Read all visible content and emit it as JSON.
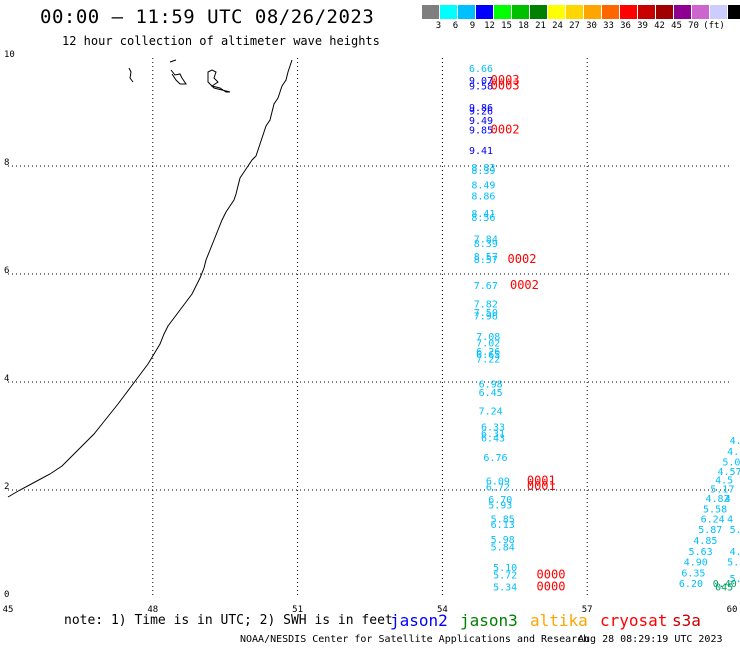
{
  "title": "00:00 — 11:59 UTC 08/26/2023",
  "subtitle": "12 hour collection of altimeter wave heights",
  "legend": {
    "colors": [
      "#7f7f7f",
      "#00ffff",
      "#00bfff",
      "#0000ff",
      "#00ff00",
      "#00c000",
      "#008000",
      "#ffff00",
      "#ffd700",
      "#ffa500",
      "#ff6600",
      "#ff0000",
      "#c80000",
      "#a00000",
      "#900090",
      "#cc66cc",
      "#ccccff",
      "#000000"
    ],
    "labels": [
      "3",
      "6",
      "9",
      "12",
      "15",
      "18",
      "21",
      "24",
      "27",
      "30",
      "33",
      "36",
      "39",
      "42",
      "45",
      "70",
      "(ft)"
    ]
  },
  "axes": {
    "x_ticks": [
      "45",
      "48",
      "51",
      "54",
      "57",
      "60"
    ],
    "y_ticks": [
      "0",
      "2",
      "4",
      "6",
      "8",
      "10"
    ]
  },
  "chart_data": {
    "type": "scatter",
    "x_range": [
      45,
      60
    ],
    "y_range": [
      0,
      10
    ],
    "points": [
      {
        "x": 54.55,
        "y": 9.74,
        "label": "6.66",
        "color": "#00bfff"
      },
      {
        "x": 54.55,
        "y": 9.52,
        "label": "9.07",
        "color": "#0000ff"
      },
      {
        "x": 54.55,
        "y": 9.42,
        "label": "9.58",
        "color": "#0000ff"
      },
      {
        "x": 54.55,
        "y": 9.02,
        "label": "9.86",
        "color": "#0000ff"
      },
      {
        "x": 54.55,
        "y": 8.95,
        "label": "9.26",
        "color": "#0000ff"
      },
      {
        "x": 54.55,
        "y": 8.78,
        "label": "9.49",
        "color": "#0000ff"
      },
      {
        "x": 54.55,
        "y": 8.6,
        "label": "9.85",
        "color": "#0000ff"
      },
      {
        "x": 54.55,
        "y": 8.22,
        "label": "9.41",
        "color": "#0000ff"
      },
      {
        "x": 54.6,
        "y": 7.91,
        "label": "8.83",
        "color": "#00bfff"
      },
      {
        "x": 54.6,
        "y": 7.85,
        "label": "8.39",
        "color": "#00bfff"
      },
      {
        "x": 54.6,
        "y": 7.58,
        "label": "8.49",
        "color": "#00bfff"
      },
      {
        "x": 54.6,
        "y": 7.38,
        "label": "8.86",
        "color": "#00bfff"
      },
      {
        "x": 54.6,
        "y": 7.06,
        "label": "8.41",
        "color": "#00bfff"
      },
      {
        "x": 54.6,
        "y": 6.98,
        "label": "8.56",
        "color": "#00bfff"
      },
      {
        "x": 54.65,
        "y": 6.58,
        "label": "7.84",
        "color": "#00bfff"
      },
      {
        "x": 54.65,
        "y": 6.5,
        "label": "8.39",
        "color": "#00bfff"
      },
      {
        "x": 54.65,
        "y": 6.26,
        "label": "8.57",
        "color": "#00bfff"
      },
      {
        "x": 54.65,
        "y": 6.2,
        "label": "8.57",
        "color": "#00bfff"
      },
      {
        "x": 54.65,
        "y": 5.72,
        "label": "7.67",
        "color": "#00bfff"
      },
      {
        "x": 54.65,
        "y": 5.38,
        "label": "7.82",
        "color": "#00bfff"
      },
      {
        "x": 54.65,
        "y": 5.22,
        "label": "7.50",
        "color": "#00bfff"
      },
      {
        "x": 54.65,
        "y": 5.16,
        "label": "7.96",
        "color": "#00bfff"
      },
      {
        "x": 54.7,
        "y": 4.78,
        "label": "7.08",
        "color": "#00bfff"
      },
      {
        "x": 54.7,
        "y": 4.66,
        "label": "7.02",
        "color": "#00bfff"
      },
      {
        "x": 54.7,
        "y": 4.5,
        "label": "6.26",
        "color": "#00bfff"
      },
      {
        "x": 54.7,
        "y": 4.44,
        "label": "6.65",
        "color": "#00bfff"
      },
      {
        "x": 54.7,
        "y": 4.36,
        "label": "7.22",
        "color": "#00bfff"
      },
      {
        "x": 54.75,
        "y": 3.9,
        "label": "6.98",
        "color": "#00bfff"
      },
      {
        "x": 54.75,
        "y": 3.74,
        "label": "6.45",
        "color": "#00bfff"
      },
      {
        "x": 54.75,
        "y": 3.4,
        "label": "7.24",
        "color": "#00bfff"
      },
      {
        "x": 54.8,
        "y": 3.1,
        "label": "6.33",
        "color": "#00bfff"
      },
      {
        "x": 54.8,
        "y": 2.98,
        "label": "6.31",
        "color": "#00bfff"
      },
      {
        "x": 54.8,
        "y": 2.9,
        "label": "6.43",
        "color": "#00bfff"
      },
      {
        "x": 54.85,
        "y": 2.54,
        "label": "6.76",
        "color": "#00bfff"
      },
      {
        "x": 54.9,
        "y": 2.1,
        "label": "6.09",
        "color": "#00bfff"
      },
      {
        "x": 54.9,
        "y": 1.99,
        "label": "6.72",
        "color": "#00bfff"
      },
      {
        "x": 54.95,
        "y": 1.76,
        "label": "6.70",
        "color": "#00bfff"
      },
      {
        "x": 54.95,
        "y": 1.66,
        "label": "5.93",
        "color": "#00bfff"
      },
      {
        "x": 55.0,
        "y": 1.4,
        "label": "5.85",
        "color": "#00bfff"
      },
      {
        "x": 55.0,
        "y": 1.3,
        "label": "6.13",
        "color": "#00bfff"
      },
      {
        "x": 55.0,
        "y": 1.02,
        "label": "5.98",
        "color": "#00bfff"
      },
      {
        "x": 55.0,
        "y": 0.88,
        "label": "5.84",
        "color": "#00bfff"
      },
      {
        "x": 55.05,
        "y": 0.5,
        "label": "5.10",
        "color": "#00bfff"
      },
      {
        "x": 55.05,
        "y": 0.36,
        "label": "5.72",
        "color": "#00bfff"
      },
      {
        "x": 55.05,
        "y": 0.14,
        "label": "5.34",
        "color": "#00bfff"
      },
      {
        "x": 55.0,
        "y": 9.52,
        "label": "0003",
        "color": "#ff0000"
      },
      {
        "x": 55.0,
        "y": 9.42,
        "label": "0003",
        "color": "#ff0000"
      },
      {
        "x": 55.0,
        "y": 8.6,
        "label": "0002",
        "color": "#ff0000"
      },
      {
        "x": 55.35,
        "y": 6.2,
        "label": "0002",
        "color": "#ff0000"
      },
      {
        "x": 55.4,
        "y": 5.72,
        "label": "0002",
        "color": "#ff0000"
      },
      {
        "x": 55.75,
        "y": 2.1,
        "label": "0001",
        "color": "#ff0000"
      },
      {
        "x": 55.75,
        "y": 2.0,
        "label": "0001",
        "color": "#ff0000"
      },
      {
        "x": 55.95,
        "y": 0.36,
        "label": "0000",
        "color": "#ff0000"
      },
      {
        "x": 55.95,
        "y": 0.14,
        "label": "0000",
        "color": "#ff0000"
      },
      {
        "x": 59.95,
        "y": 2.85,
        "label": "4.",
        "color": "#00bfff"
      },
      {
        "x": 59.9,
        "y": 2.65,
        "label": "4.",
        "color": "#00bfff"
      },
      {
        "x": 59.8,
        "y": 2.45,
        "label": "5.0",
        "color": "#00bfff"
      },
      {
        "x": 59.7,
        "y": 2.28,
        "label": "4.57",
        "color": "#00bfff"
      },
      {
        "x": 59.65,
        "y": 2.12,
        "label": "4.5",
        "color": "#00bfff"
      },
      {
        "x": 59.55,
        "y": 1.95,
        "label": "5.17",
        "color": "#00bfff"
      },
      {
        "x": 59.45,
        "y": 1.78,
        "label": "4.82",
        "color": "#00bfff"
      },
      {
        "x": 59.4,
        "y": 1.58,
        "label": "5.58",
        "color": "#00bfff"
      },
      {
        "x": 59.35,
        "y": 1.4,
        "label": "6.24",
        "color": "#00bfff"
      },
      {
        "x": 59.3,
        "y": 1.2,
        "label": "5.87",
        "color": "#00bfff"
      },
      {
        "x": 59.2,
        "y": 1.0,
        "label": "4.85",
        "color": "#00bfff"
      },
      {
        "x": 59.1,
        "y": 0.8,
        "label": "5.63",
        "color": "#00bfff"
      },
      {
        "x": 59.0,
        "y": 0.6,
        "label": "4.90",
        "color": "#00bfff"
      },
      {
        "x": 58.95,
        "y": 0.4,
        "label": "6.35",
        "color": "#00bfff"
      },
      {
        "x": 58.9,
        "y": 0.2,
        "label": "6.20",
        "color": "#00bfff"
      },
      {
        "x": 59.85,
        "y": 1.78,
        "label": "4",
        "color": "#00bfff"
      },
      {
        "x": 59.9,
        "y": 1.4,
        "label": "4",
        "color": "#00bfff"
      },
      {
        "x": 59.95,
        "y": 1.2,
        "label": "5.0",
        "color": "#00bfff"
      },
      {
        "x": 59.95,
        "y": 0.8,
        "label": "4.5",
        "color": "#00bfff"
      },
      {
        "x": 59.9,
        "y": 0.6,
        "label": "5.3",
        "color": "#00bfff"
      },
      {
        "x": 59.95,
        "y": 0.3,
        "label": "5.2",
        "color": "#00bfff"
      },
      {
        "x": 59.6,
        "y": 0.2,
        "label": "0.40",
        "color": "#00a060"
      },
      {
        "x": 59.65,
        "y": 0.14,
        "label": "045",
        "color": "#00a060"
      }
    ]
  },
  "note": "note: 1) Time is in UTC; 2) SWH is in feet",
  "satellites": [
    {
      "name": "jason2",
      "color": "#0000ff"
    },
    {
      "name": "jason3",
      "color": "#008000"
    },
    {
      "name": "altika",
      "color": "#ffa500"
    },
    {
      "name": "cryosat",
      "color": "#ff0000"
    },
    {
      "name": "s3a",
      "color": "#c80000"
    }
  ],
  "credit": "NOAA/NESDIS Center for Satellite Applications and Research",
  "timestamp": "Aug 28 08:29:19 UTC 2023"
}
